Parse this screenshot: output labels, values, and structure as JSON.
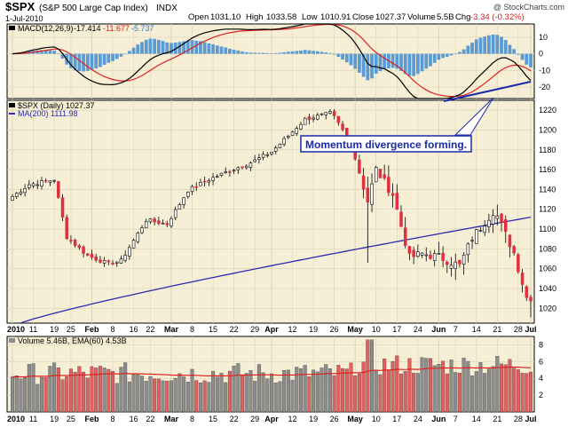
{
  "header": {
    "symbol": "$SPX",
    "name": "(S&P 500 Large Cap Index)",
    "exchange": "INDX",
    "date": "1-Jul-2010",
    "open_label": "Open",
    "open": "1031.10",
    "high_label": "High",
    "high": "1033.58",
    "low_label": "Low",
    "low": "1010.91",
    "close_label": "Close",
    "close": "1027.37",
    "volume_label": "Volume",
    "volume": "5.5B",
    "change_label": "Chg",
    "change": "-3.34 (-0.32%)",
    "watermark": "@ StockCharts.com"
  },
  "colors": {
    "panel_bg": "#f6efd6",
    "grid": "#ddd4b8",
    "up": "#ffffff",
    "down": "#e03040",
    "candle_edge": "#000000",
    "ma200": "#2b2bb0",
    "macd_line": "#000000",
    "signal_line": "#e02020",
    "hist": "#5a9bd5",
    "vol_up": "#8c8c8c",
    "vol_down": "#e06060",
    "ema": "#e02020",
    "annotation_border": "#1a2aa8",
    "annotation_text": "#1a2aa8"
  },
  "macd_panel": {
    "label": "MACD(12,26,9)",
    "macd_value": "-17.414",
    "signal_value": "-11.677",
    "hist_value": "-5.737",
    "y_ticks": [
      10,
      0,
      -10,
      -20
    ]
  },
  "price_panel": {
    "legend_symbol": "$SPX (Daily) 1027.37",
    "legend_ma": "MA(200) 1111.98",
    "y_ticks": [
      1020,
      1040,
      1060,
      1080,
      1100,
      1120,
      1140,
      1160,
      1180,
      1200,
      1220
    ],
    "annotation": "Momentum divergence forming."
  },
  "volume_panel": {
    "label": "Volume 5.46B, EMA(60) 4.53B",
    "y_ticks": [
      2,
      4,
      6,
      8
    ],
    "y_tick_labels": [
      "2",
      "4",
      "6",
      "8"
    ]
  },
  "x_axis": {
    "labels": [
      "2010",
      "11",
      "19",
      "25",
      "Feb",
      "8",
      "16",
      "22",
      "Mar",
      "8",
      "15",
      "22",
      "29",
      "Apr",
      "12",
      "19",
      "26",
      "May",
      "10",
      "17",
      "24",
      "Jun",
      "7",
      "14",
      "21",
      "28",
      "Jul"
    ],
    "bold_labels": [
      "2010",
      "Feb",
      "Mar",
      "Apr",
      "May",
      "Jun",
      "Jul"
    ]
  },
  "chart_data": {
    "type": "candlestick",
    "title": "$SPX (S&P 500 Large Cap Index) INDX",
    "date_range": [
      "2010-01-04",
      "2010-07-01"
    ],
    "price_ylim": [
      1005,
      1230
    ],
    "macd_ylim": [
      -27,
      18
    ],
    "volume_ylim": [
      0,
      9
    ],
    "ohlc_anchor_closes": {
      "dates": [
        "2010-01-04",
        "2010-01-08",
        "2010-01-14",
        "2010-01-19",
        "2010-01-22",
        "2010-01-29",
        "2010-02-05",
        "2010-02-10",
        "2010-02-19",
        "2010-02-26",
        "2010-03-05",
        "2010-03-12",
        "2010-03-19",
        "2010-03-26",
        "2010-04-02",
        "2010-04-09",
        "2010-04-15",
        "2010-04-23",
        "2010-04-26",
        "2010-04-30",
        "2010-05-06",
        "2010-05-10",
        "2010-05-14",
        "2010-05-20",
        "2010-05-25",
        "2010-06-01",
        "2010-06-08",
        "2010-06-11",
        "2010-06-18",
        "2010-06-21",
        "2010-06-25",
        "2010-06-30",
        "2010-07-01"
      ],
      "closes": [
        1133,
        1145,
        1148,
        1150,
        1092,
        1073,
        1065,
        1068,
        1109,
        1105,
        1139,
        1150,
        1159,
        1167,
        1178,
        1194,
        1211,
        1217,
        1213,
        1187,
        1128,
        1160,
        1135,
        1071,
        1075,
        1072,
        1063,
        1091,
        1118,
        1113,
        1076,
        1031,
        1027
      ]
    },
    "ma200_range": [
      1002,
      1112
    ],
    "annotation": "Momentum divergence forming.",
    "series": [
      {
        "name": "$SPX (Daily)",
        "last": 1027.37
      },
      {
        "name": "MA(200)",
        "last": 1111.98
      },
      {
        "name": "MACD(12,26,9)",
        "last": -17.414
      },
      {
        "name": "Signal",
        "last": -11.677
      },
      {
        "name": "Histogram",
        "last": -5.737
      },
      {
        "name": "Volume",
        "last": "5.46B"
      },
      {
        "name": "EMA(60)",
        "last": "4.53B"
      }
    ],
    "grid": true
  }
}
